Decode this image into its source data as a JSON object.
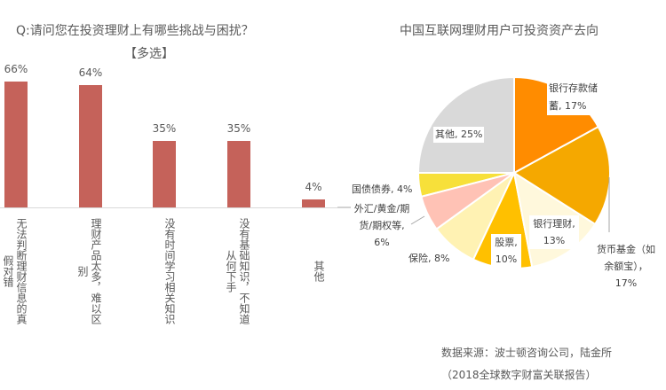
{
  "chart_data": [
    {
      "type": "bar",
      "title": "Q:请问您在投资理财上有哪些挑战与困扰？",
      "subtitle": "【多选】",
      "categories": [
        "无法判断理财信息的真假对错",
        "理财产品太多，难以区别",
        "没有时间学习相关知识",
        "没有基础知识，不知道从何下手",
        "其他"
      ],
      "values": [
        66,
        64,
        35,
        35,
        4
      ],
      "value_labels": [
        "66%",
        "64%",
        "35%",
        "35%",
        "4%"
      ],
      "ylim": [
        0,
        70
      ],
      "color": "#C5625A"
    },
    {
      "type": "pie",
      "title": "中国互联网理财用户可投资资产去向",
      "slices": [
        {
          "label": "银行存款储蓄",
          "value": 17,
          "text": "银行存款储蓄, 17%",
          "color": "#FF8C00"
        },
        {
          "label": "货币基金（如余额宝）",
          "value": 17,
          "text": "货币基金（如余额宝），17%",
          "color": "#F5A800"
        },
        {
          "label": "银行理财",
          "value": 13,
          "text": "银行理财, 13%",
          "color": "#FFF8DC"
        },
        {
          "label": "股票",
          "value": 10,
          "text": "股票, 10%",
          "color": "#FFC000"
        },
        {
          "label": "保险",
          "value": 8,
          "text": "保险, 8%",
          "color": "#FFF2B3"
        },
        {
          "label": "外汇/黄金/期货/期权等",
          "value": 6,
          "text": "外汇/黄金/期货/期权等, 6%",
          "color": "#FFC2B5"
        },
        {
          "label": "国债债券",
          "value": 4,
          "text": "国债债券, 4%",
          "color": "#F7E03A"
        },
        {
          "label": "其他",
          "value": 25,
          "text": "其他, 25%",
          "color": "#D9D9D9"
        }
      ]
    }
  ],
  "source": {
    "line1": "数据来源：波士顿咨询公司，陆金所",
    "line2": "（2018全球数字财富关联报告）"
  }
}
